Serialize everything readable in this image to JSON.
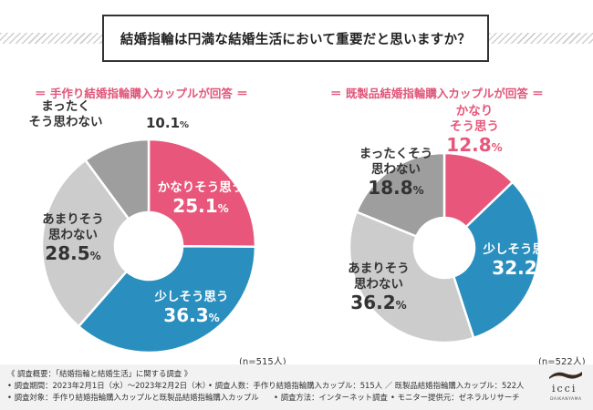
{
  "title": "結婚指輪は円満な結婚生活において重要だと思いますか？",
  "chart_data": [
    {
      "type": "pie",
      "subtitle": "＝ 手作り結婚指輪購入カップルが回答 ＝",
      "n": "(n=515人)",
      "slices": [
        {
          "label_lines": [
            "かなりそう思う"
          ],
          "value": 25.1,
          "color": "#e8577b"
        },
        {
          "label_lines": [
            "少しそう思う"
          ],
          "value": 36.3,
          "color": "#2a8fbf"
        },
        {
          "label_lines": [
            "あまりそう",
            "思わない"
          ],
          "value": 28.5,
          "color": "#cccccc"
        },
        {
          "label_lines": [
            "まったく",
            "そう思わない"
          ],
          "value": 10.1,
          "color": "#9e9e9e"
        }
      ]
    },
    {
      "type": "pie",
      "subtitle": "＝ 既製品結婚指輪購入カップルが回答 ＝",
      "n": "(n=522人)",
      "slices": [
        {
          "label_lines": [
            "かなり",
            "そう思う"
          ],
          "value": 12.8,
          "color": "#e8577b"
        },
        {
          "label_lines": [
            "少しそう思う"
          ],
          "value": 32.2,
          "color": "#2a8fbf"
        },
        {
          "label_lines": [
            "あまりそう",
            "思わない"
          ],
          "value": 36.2,
          "color": "#cccccc"
        },
        {
          "label_lines": [
            "まったくそう",
            "思わない"
          ],
          "value": 18.8,
          "color": "#9e9e9e"
        }
      ]
    }
  ],
  "footer": {
    "line1": "《 調査概要：「結婚指輪と結婚生活」に関する調査 》",
    "line2a": "• 調査期間：2023年2月1日（水）〜2023年2月2日（木）",
    "line2b": "• 調査人数：手作り結婚指輪購入カップル：515人 ／ 既製品結婚指輪購入カップル：522人",
    "line3a": "• 調査対象：手作り結婚指輪購入カップルと既製品結婚指輪購入カップル",
    "line3b": "• 調査方法：インターネット調査",
    "line3c": "• モニター提供元：ゼネラルリサーチ"
  },
  "logo": {
    "text": "icci",
    "sub": "DAIKANYAMA"
  }
}
